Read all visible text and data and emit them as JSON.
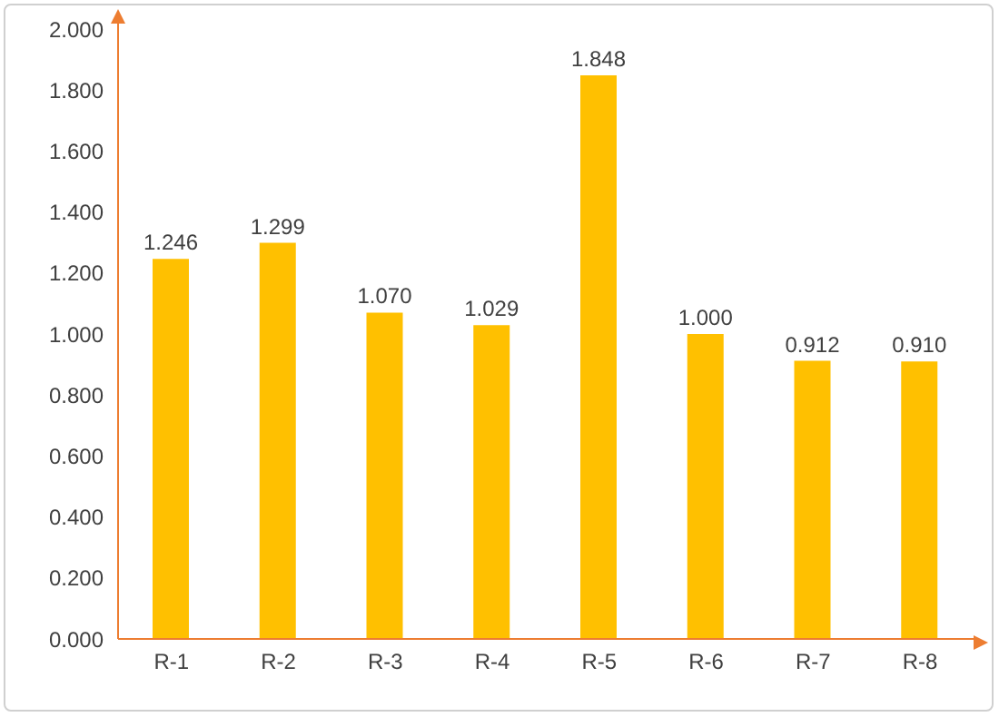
{
  "chart_data": {
    "type": "bar",
    "categories": [
      "R-1",
      "R-2",
      "R-3",
      "R-4",
      "R-5",
      "R-6",
      "R-7",
      "R-8"
    ],
    "values": [
      1.246,
      1.299,
      1.07,
      1.029,
      1.848,
      1.0,
      0.912,
      0.91
    ],
    "value_labels": [
      "1.246",
      "1.299",
      "1.070",
      "1.029",
      "1.848",
      "1.000",
      "0.912",
      "0.910"
    ],
    "color": "#ffc000",
    "ylim": [
      0,
      2
    ],
    "yticks": [
      {
        "value": 0,
        "label": "0.000"
      },
      {
        "value": 0.2,
        "label": "0.200"
      },
      {
        "value": 0.4,
        "label": "0.400"
      },
      {
        "value": 0.6,
        "label": "0.600"
      },
      {
        "value": 0.8,
        "label": "0.800"
      },
      {
        "value": 1,
        "label": "1.000"
      },
      {
        "value": 1.2,
        "label": "1.200"
      },
      {
        "value": 1.4,
        "label": "1.400"
      },
      {
        "value": 1.6,
        "label": "1.600"
      },
      {
        "value": 1.8,
        "label": "1.800"
      },
      {
        "value": 2,
        "label": "2.000"
      }
    ],
    "grid": false,
    "legend": false
  }
}
